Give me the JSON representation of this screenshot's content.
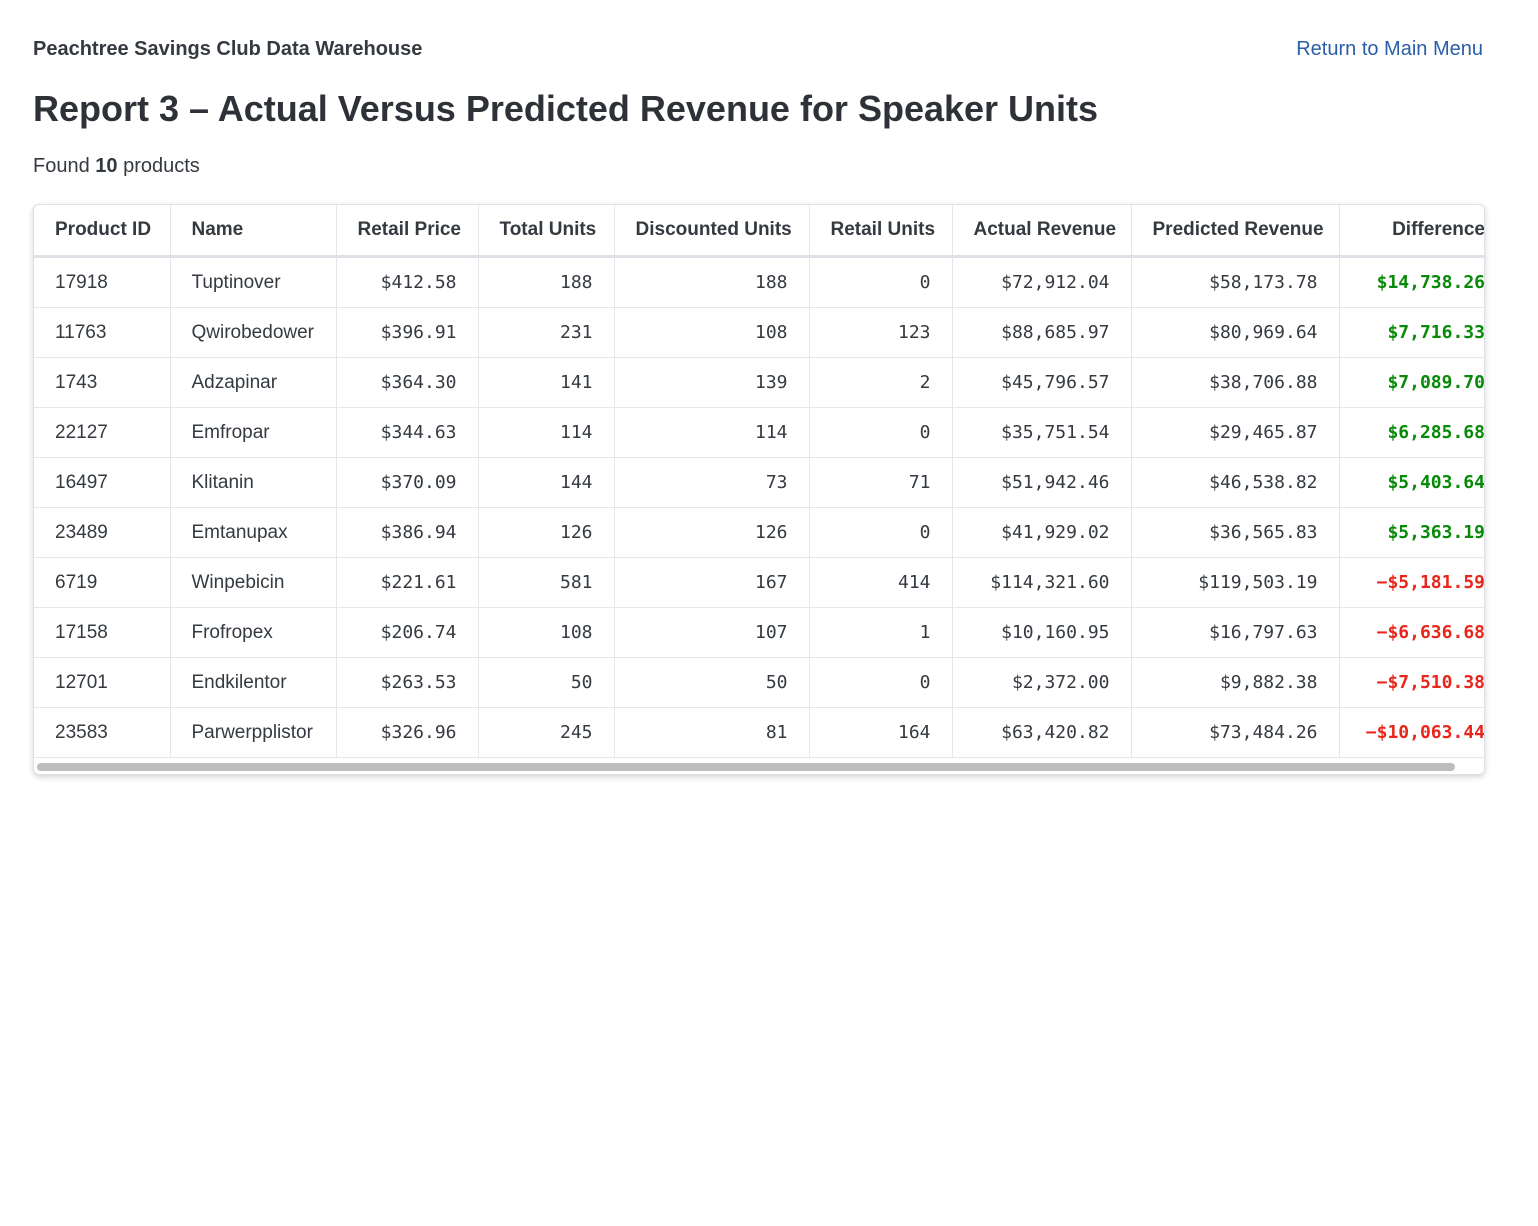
{
  "header": {
    "app_name": "Peachtree Savings Club Data Warehouse",
    "link": "Return to Main Menu"
  },
  "title": "Report 3 – Actual Versus Predicted Revenue for Speaker Units",
  "summary": {
    "prefix": "Found",
    "count": "10",
    "suffix": "products"
  },
  "table": {
    "columns": [
      "Product ID",
      "Name",
      "Retail Price",
      "Total Units",
      "Discounted Units",
      "Retail Units",
      "Actual Revenue",
      "Predicted Revenue",
      "Difference"
    ],
    "rows": [
      [
        "17918",
        "Tuptinover",
        "$412.58",
        "188",
        "188",
        "0",
        "$72,912.04",
        "$58,173.78",
        "$14,738.26"
      ],
      [
        "11763",
        "Qwirobedower",
        "$396.91",
        "231",
        "108",
        "123",
        "$88,685.97",
        "$80,969.64",
        "$7,716.33"
      ],
      [
        "1743",
        "Adzapinar",
        "$364.30",
        "141",
        "139",
        "2",
        "$45,796.57",
        "$38,706.88",
        "$7,089.70"
      ],
      [
        "22127",
        "Emfropar",
        "$344.63",
        "114",
        "114",
        "0",
        "$35,751.54",
        "$29,465.87",
        "$6,285.68"
      ],
      [
        "16497",
        "Klitanin",
        "$370.09",
        "144",
        "73",
        "71",
        "$51,942.46",
        "$46,538.82",
        "$5,403.64"
      ],
      [
        "23489",
        "Emtanupax",
        "$386.94",
        "126",
        "126",
        "0",
        "$41,929.02",
        "$36,565.83",
        "$5,363.19"
      ],
      [
        "6719",
        "Winpebicin",
        "$221.61",
        "581",
        "167",
        "414",
        "$114,321.60",
        "$119,503.19",
        "−$5,181.59"
      ],
      [
        "17158",
        "Frofropex",
        "$206.74",
        "108",
        "107",
        "1",
        "$10,160.95",
        "$16,797.63",
        "−$6,636.68"
      ],
      [
        "12701",
        "Endkilentor",
        "$263.53",
        "50",
        "50",
        "0",
        "$2,372.00",
        "$9,882.38",
        "−$7,510.38"
      ],
      [
        "23583",
        "Parwerpplistor",
        "$326.96",
        "245",
        "81",
        "164",
        "$63,420.82",
        "$73,484.26",
        "−$10,063.44"
      ]
    ]
  }
}
